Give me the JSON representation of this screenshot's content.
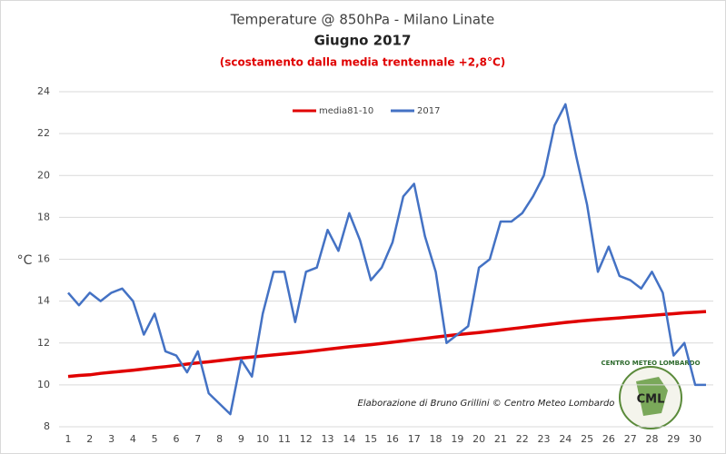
{
  "chart_data": {
    "type": "line",
    "title": "Temperature @ 850hPa - Milano Linate",
    "subtitle": "Giugno 2017",
    "annotation": "(scostamento dalla media trentennale +2,8°C)",
    "y_label": "°C",
    "credit": "Elaborazione di Bruno Grillini  ©  Centro Meteo Lombardo",
    "logo": "CML",
    "logo_ring": "CENTRO METEO LOMBARDO",
    "x": [
      1,
      1.5,
      2,
      2.5,
      3,
      3.5,
      4,
      4.5,
      5,
      5.5,
      6,
      6.5,
      7,
      7.5,
      8,
      8.5,
      9,
      9.5,
      10,
      10.5,
      11,
      11.5,
      12,
      12.5,
      13,
      13.5,
      14,
      14.5,
      15,
      15.5,
      16,
      16.5,
      17,
      17.5,
      18,
      18.5,
      19,
      19.5,
      20,
      20.5,
      21,
      21.5,
      22,
      22.5,
      23,
      23.5,
      24,
      24.5,
      25,
      25.5,
      26,
      26.5,
      27,
      27.5,
      28,
      28.5,
      29,
      29.5,
      30,
      30.5
    ],
    "series": [
      {
        "name": "media81-10",
        "color": "#e00000",
        "width": 3.5,
        "values": [
          10.4,
          10.45,
          10.48,
          10.55,
          10.6,
          10.65,
          10.7,
          10.76,
          10.82,
          10.87,
          10.93,
          10.99,
          11.05,
          11.1,
          11.16,
          11.22,
          11.28,
          11.33,
          11.38,
          11.43,
          11.48,
          11.53,
          11.58,
          11.64,
          11.7,
          11.76,
          11.82,
          11.87,
          11.92,
          11.98,
          12.04,
          12.1,
          12.16,
          12.22,
          12.28,
          12.34,
          12.4,
          12.45,
          12.5,
          12.56,
          12.62,
          12.68,
          12.74,
          12.8,
          12.86,
          12.92,
          12.98,
          13.03,
          13.08,
          13.12,
          13.16,
          13.2,
          13.24,
          13.28,
          13.32,
          13.36,
          13.4,
          13.44,
          13.47,
          13.5
        ]
      },
      {
        "name": "2017",
        "color": "#4472c4",
        "width": 2.5,
        "values": [
          14.4,
          13.8,
          14.4,
          14.0,
          14.4,
          14.6,
          14.0,
          12.4,
          13.4,
          11.6,
          11.4,
          10.6,
          11.6,
          9.6,
          9.1,
          8.6,
          11.2,
          10.4,
          13.4,
          15.4,
          15.4,
          13.0,
          15.4,
          15.6,
          17.4,
          16.4,
          18.2,
          16.9,
          15.0,
          15.6,
          16.8,
          19.0,
          19.6,
          17.1,
          15.4,
          12.0,
          12.4,
          12.8,
          15.6,
          16.0,
          17.8,
          17.8,
          18.2,
          19.0,
          20.0,
          22.4,
          23.4,
          20.9,
          18.6,
          15.4,
          16.6,
          15.2,
          15.0,
          14.6,
          15.4,
          14.4,
          11.4,
          12.0,
          10.0,
          10.0
        ]
      }
    ],
    "xlim": [
      1,
      30.5
    ],
    "xticks": [
      1,
      2,
      3,
      4,
      5,
      6,
      7,
      8,
      9,
      10,
      11,
      12,
      13,
      14,
      15,
      16,
      17,
      18,
      19,
      20,
      21,
      22,
      23,
      24,
      25,
      26,
      27,
      28,
      29,
      30
    ],
    "ylim": [
      8,
      24
    ],
    "yticks": [
      8,
      10,
      12,
      14,
      16,
      18,
      20,
      22,
      24
    ],
    "grid": true
  }
}
